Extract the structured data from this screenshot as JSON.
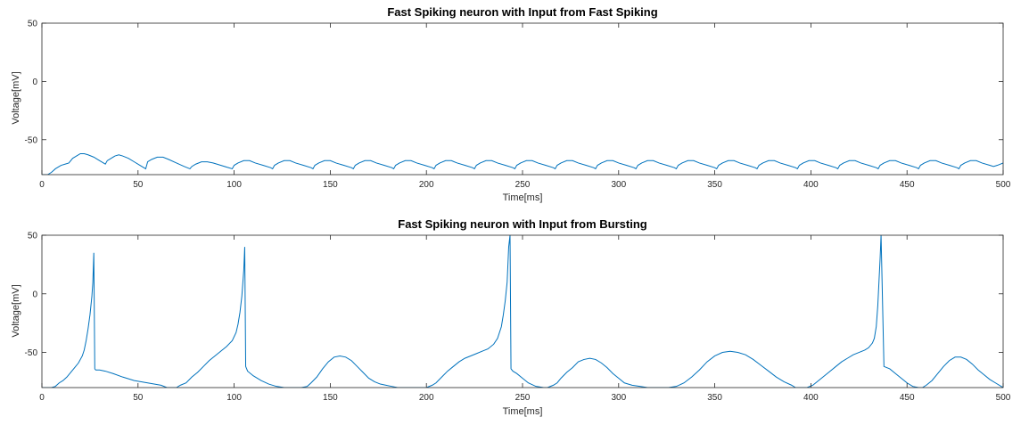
{
  "colors": {
    "line": "#0072BD",
    "axis": "#262626",
    "background": "#ffffff"
  },
  "chart_data": [
    {
      "type": "line",
      "title": "Fast Spiking neuron with Input from Fast Spiking",
      "xlabel": "Time[ms]",
      "ylabel": "Voltage[mV]",
      "xlim": [
        0,
        500
      ],
      "ylim": [
        -80,
        50
      ],
      "xticks": [
        0,
        50,
        100,
        150,
        200,
        250,
        300,
        350,
        400,
        450,
        500
      ],
      "yticks": [
        50,
        0,
        -50
      ],
      "grid": false,
      "series": [
        {
          "x": [
            0,
            3,
            5,
            7,
            9,
            10,
            12,
            14,
            16,
            18,
            20,
            22,
            24,
            27,
            30,
            33,
            34,
            36,
            38,
            40,
            42,
            45,
            48,
            51,
            54,
            55,
            57,
            60,
            63,
            66,
            70,
            74,
            77,
            78,
            80,
            83,
            86,
            89,
            93,
            97,
            99,
            100,
            102,
            105,
            108,
            111,
            115,
            119,
            120,
            121,
            123,
            126,
            129,
            132,
            136,
            140,
            141,
            142,
            144,
            147,
            150,
            153,
            157,
            161,
            162,
            163,
            165,
            168,
            171,
            174,
            178,
            182,
            183,
            184,
            186,
            189,
            192,
            195,
            199,
            203,
            204,
            205,
            207,
            210,
            213,
            216,
            220,
            224,
            225,
            226,
            228,
            231,
            234,
            237,
            241,
            245,
            246,
            247,
            249,
            252,
            255,
            258,
            262,
            266,
            267,
            268,
            270,
            273,
            276,
            279,
            283,
            287,
            288,
            289,
            291,
            294,
            297,
            300,
            304,
            308,
            309,
            310,
            312,
            315,
            318,
            321,
            325,
            329,
            330,
            331,
            333,
            336,
            339,
            342,
            346,
            350,
            351,
            352,
            354,
            357,
            360,
            363,
            367,
            371,
            372,
            373,
            375,
            378,
            381,
            384,
            388,
            392,
            393,
            394,
            396,
            399,
            402,
            405,
            409,
            413,
            414,
            415,
            417,
            420,
            423,
            426,
            430,
            434,
            435,
            436,
            438,
            441,
            444,
            447,
            451,
            455,
            456,
            457,
            459,
            462,
            465,
            468,
            472,
            476,
            477,
            478,
            480,
            483,
            486,
            489,
            493,
            495,
            497,
            500
          ],
          "y": [
            -80,
            -80,
            -78,
            -75,
            -73,
            -72,
            -71,
            -70,
            -66,
            -64,
            -62,
            -62,
            -63,
            -65,
            -68,
            -71,
            -68,
            -66,
            -64,
            -63,
            -64,
            -66,
            -69,
            -72,
            -75,
            -69,
            -67,
            -65,
            -65,
            -67,
            -70,
            -73,
            -75,
            -73,
            -71,
            -69,
            -69,
            -70,
            -72,
            -74,
            -75,
            -72,
            -70,
            -68,
            -68,
            -70,
            -72,
            -74,
            -75,
            -72,
            -70,
            -68,
            -68,
            -70,
            -72,
            -74,
            -75,
            -72,
            -70,
            -68,
            -68,
            -70,
            -72,
            -74,
            -75,
            -72,
            -70,
            -68,
            -68,
            -70,
            -72,
            -74,
            -75,
            -72,
            -70,
            -68,
            -68,
            -70,
            -72,
            -74,
            -75,
            -72,
            -70,
            -68,
            -68,
            -70,
            -72,
            -74,
            -75,
            -72,
            -70,
            -68,
            -68,
            -70,
            -72,
            -74,
            -75,
            -72,
            -70,
            -68,
            -68,
            -70,
            -72,
            -74,
            -75,
            -72,
            -70,
            -68,
            -68,
            -70,
            -72,
            -74,
            -75,
            -72,
            -70,
            -68,
            -68,
            -70,
            -72,
            -74,
            -75,
            -72,
            -70,
            -68,
            -68,
            -70,
            -72,
            -74,
            -75,
            -72,
            -70,
            -68,
            -68,
            -70,
            -72,
            -74,
            -75,
            -72,
            -70,
            -68,
            -68,
            -70,
            -72,
            -74,
            -75,
            -72,
            -70,
            -68,
            -68,
            -70,
            -72,
            -74,
            -75,
            -72,
            -70,
            -68,
            -68,
            -70,
            -72,
            -74,
            -75,
            -72,
            -70,
            -68,
            -68,
            -70,
            -72,
            -74,
            -75,
            -72,
            -70,
            -68,
            -68,
            -70,
            -72,
            -74,
            -75,
            -72,
            -70,
            -68,
            -68,
            -70,
            -72,
            -74,
            -75,
            -72,
            -70,
            -68,
            -68,
            -70,
            -72,
            -73,
            -72,
            -70
          ]
        }
      ]
    },
    {
      "type": "line",
      "title": "Fast Spiking neuron with Input from Bursting",
      "xlabel": "Time[ms]",
      "ylabel": "Voltage[mV]",
      "xlim": [
        0,
        500
      ],
      "ylim": [
        -80,
        50
      ],
      "xticks": [
        0,
        50,
        100,
        150,
        200,
        250,
        300,
        350,
        400,
        450,
        500
      ],
      "yticks": [
        50,
        0,
        -50
      ],
      "grid": false,
      "series": [
        {
          "x": [
            0,
            5,
            7,
            9,
            11,
            13,
            15,
            17,
            19,
            21,
            22,
            23,
            24,
            25,
            26,
            26.5,
            27,
            27.5,
            28,
            30,
            33,
            37,
            42,
            48,
            55,
            62,
            65,
            70,
            72,
            75,
            78,
            81,
            84,
            87,
            90,
            93,
            96,
            99,
            101,
            102,
            103,
            104,
            105,
            105.5,
            106,
            106.5,
            107,
            110,
            114,
            118,
            122,
            126,
            130,
            135,
            138,
            140,
            143,
            146,
            149,
            152,
            155,
            158,
            161,
            164,
            167,
            170,
            173,
            176,
            179,
            182,
            185,
            188,
            192,
            196,
            200,
            203,
            205,
            208,
            211,
            214,
            217,
            220,
            223,
            226,
            229,
            232,
            235,
            237,
            239,
            240,
            241,
            242,
            242.8,
            243.5,
            244,
            245,
            247,
            250,
            253,
            257,
            261,
            263,
            266,
            268,
            270,
            273,
            276,
            279,
            282,
            285,
            288,
            291,
            294,
            297,
            300,
            303,
            307,
            311,
            315,
            319,
            323,
            326,
            330,
            334,
            338,
            342,
            346,
            350,
            354,
            358,
            362,
            366,
            370,
            374,
            378,
            382,
            386,
            390,
            392,
            395,
            398,
            401,
            404,
            407,
            410,
            413,
            416,
            419,
            422,
            425,
            428,
            430,
            432,
            433,
            434,
            434.8,
            435.4,
            436,
            436.5,
            438,
            441,
            444,
            447,
            450,
            453,
            456,
            458,
            460,
            463,
            466,
            469,
            472,
            475,
            478,
            481,
            484,
            487,
            490,
            493,
            496,
            500
          ],
          "y": [
            -80,
            -80,
            -79,
            -76,
            -74,
            -71,
            -67,
            -63,
            -59,
            -53,
            -48,
            -40,
            -30,
            -18,
            -2,
            10,
            35,
            -64,
            -65,
            -65,
            -66,
            -68,
            -71,
            -74,
            -76,
            -78,
            -80,
            -80,
            -78,
            -76,
            -71,
            -67,
            -62,
            -57,
            -53,
            -49,
            -45,
            -40,
            -33,
            -26,
            -16,
            -2,
            20,
            40,
            -62,
            -64,
            -66,
            -70,
            -74,
            -77,
            -79,
            -80,
            -80,
            -80,
            -79,
            -76,
            -71,
            -64,
            -58,
            -54,
            -53,
            -54,
            -57,
            -62,
            -67,
            -72,
            -75,
            -77,
            -78,
            -79,
            -80,
            -80,
            -80,
            -80,
            -80,
            -78,
            -76,
            -71,
            -66,
            -62,
            -58,
            -55,
            -53,
            -51,
            -49,
            -47,
            -43,
            -38,
            -28,
            -18,
            -6,
            10,
            40,
            50,
            -64,
            -66,
            -68,
            -72,
            -76,
            -79,
            -80,
            -80,
            -78,
            -76,
            -72,
            -67,
            -63,
            -58,
            -56,
            -55,
            -56,
            -59,
            -63,
            -68,
            -72,
            -76,
            -78,
            -79,
            -80,
            -80,
            -80,
            -80,
            -79,
            -76,
            -71,
            -65,
            -58,
            -53,
            -50,
            -49,
            -50,
            -52,
            -56,
            -61,
            -66,
            -71,
            -75,
            -78,
            -80,
            -80,
            -80,
            -78,
            -74,
            -70,
            -66,
            -62,
            -58,
            -55,
            -52,
            -50,
            -48,
            -46,
            -42,
            -38,
            -28,
            -10,
            10,
            30,
            50,
            -62,
            -64,
            -68,
            -72,
            -76,
            -79,
            -80,
            -80,
            -78,
            -74,
            -68,
            -62,
            -57,
            -54,
            -54,
            -56,
            -60,
            -65,
            -69,
            -73,
            -76,
            -80
          ]
        }
      ]
    }
  ]
}
